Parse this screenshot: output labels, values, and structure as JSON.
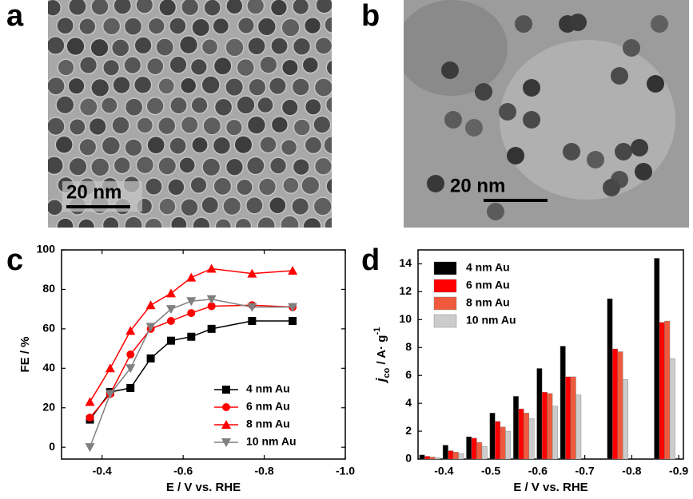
{
  "panel_labels": [
    "a",
    "b",
    "c",
    "d"
  ],
  "scale_bars": [
    "20 nm",
    "20 nm"
  ],
  "chart_data": [
    {
      "type": "line",
      "xlabel": "E / V vs. RHE",
      "ylabel": "FE / %",
      "x": [
        -0.37,
        -0.42,
        -0.47,
        -0.52,
        -0.57,
        -0.62,
        -0.67,
        -0.77,
        -0.87
      ],
      "xlim": [
        -0.3,
        -1.0
      ],
      "xticks": [
        -0.4,
        -0.6,
        -0.8,
        {
          "value": -1.0,
          "label": "-1.0"
        }
      ],
      "ylim": [
        -6,
        100
      ],
      "yticks": [
        0,
        20,
        40,
        60,
        80,
        100
      ],
      "series": [
        {
          "name": "4 nm Au",
          "color": "#000000",
          "marker": "square",
          "values": [
            14,
            28,
            30,
            45,
            54,
            56,
            60,
            64,
            64
          ]
        },
        {
          "name": "6 nm Au",
          "color": "#ff0000",
          "marker": "circle",
          "values": [
            15,
            27,
            47,
            60,
            64,
            68,
            71.5,
            72,
            71
          ]
        },
        {
          "name": "8 nm Au",
          "color": "#ff0000",
          "marker": "triangle",
          "values": [
            23,
            40,
            59,
            72,
            78,
            86,
            90.5,
            88,
            89.5
          ]
        },
        {
          "name": "10 nm Au",
          "color": "#808080",
          "marker": "triangle-down",
          "values": [
            0,
            27,
            40,
            61,
            70,
            74,
            75,
            71,
            71
          ]
        }
      ]
    },
    {
      "type": "bar",
      "xlabel": "E / V vs. RHE",
      "ylabel_parts": [
        "j",
        "co",
        " / A· g",
        "-1"
      ],
      "x": [
        -0.37,
        -0.42,
        -0.47,
        -0.52,
        -0.57,
        -0.62,
        -0.67,
        -0.77,
        -0.87
      ],
      "xlim": [
        -0.345,
        -0.91
      ],
      "xticks": [
        -0.4,
        -0.5,
        -0.6,
        -0.7,
        -0.8,
        -0.9
      ],
      "ylim": [
        0,
        15
      ],
      "yticks": [
        0,
        2,
        4,
        6,
        8,
        10,
        12,
        14
      ],
      "series": [
        {
          "name": "4 nm Au",
          "color": "#000000",
          "values": [
            0.3,
            1.0,
            1.6,
            3.3,
            4.5,
            6.5,
            8.1,
            11.5,
            14.4
          ]
        },
        {
          "name": "6 nm Au",
          "color": "#ff0000",
          "values": [
            0.2,
            0.6,
            1.5,
            2.7,
            3.6,
            4.8,
            5.9,
            7.9,
            9.8
          ]
        },
        {
          "name": "8 nm Au",
          "color": "#f05a3c",
          "values": [
            0.15,
            0.5,
            1.2,
            2.3,
            3.3,
            4.7,
            5.9,
            7.7,
            9.9
          ]
        },
        {
          "name": "10 nm Au",
          "color": "#cccccc",
          "values": [
            0.1,
            0.4,
            0.9,
            2.0,
            2.9,
            3.8,
            4.6,
            5.7,
            7.2
          ]
        }
      ]
    }
  ]
}
